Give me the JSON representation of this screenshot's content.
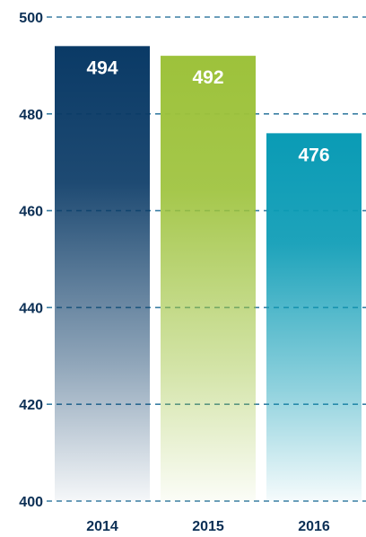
{
  "chart_data": {
    "type": "bar",
    "title": "",
    "xlabel": "",
    "ylabel": "",
    "categories": [
      "2014",
      "2015",
      "2016"
    ],
    "values": [
      494,
      492,
      476
    ],
    "data_labels": [
      "494",
      "492",
      "476"
    ],
    "ylim": [
      400,
      500
    ],
    "yticks": [
      400,
      420,
      440,
      460,
      480,
      500
    ],
    "ytick_labels": [
      "400",
      "420",
      "440",
      "460",
      "480",
      "500"
    ],
    "grid": true,
    "grid_style": "dashed",
    "bar_colors": [
      "#0a3a66",
      "#9dc23b",
      "#0a9bb5"
    ],
    "label_color": "#0b2f55",
    "grid_color": "#3a7fa3"
  }
}
